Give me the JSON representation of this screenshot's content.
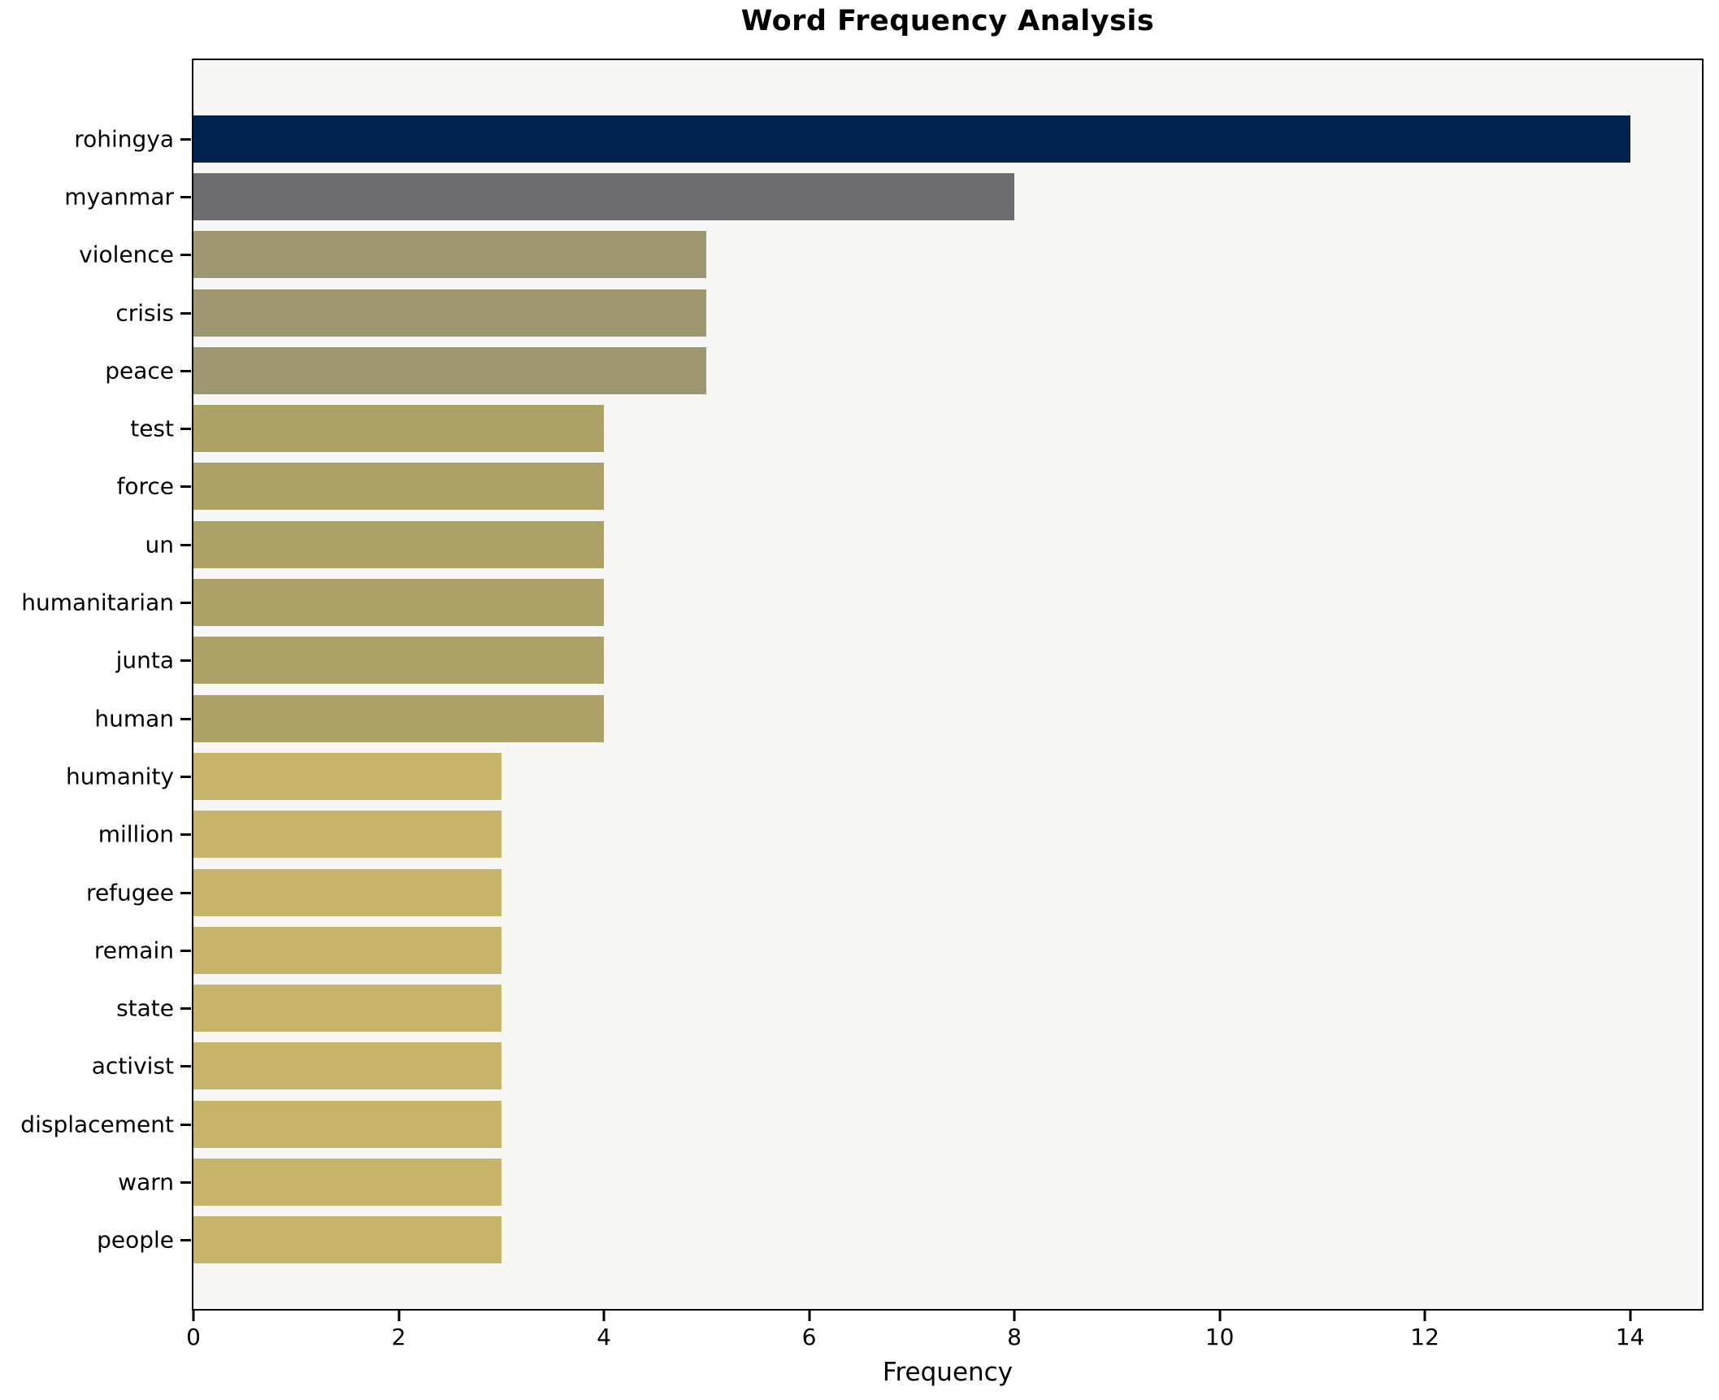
{
  "chart_data": {
    "type": "bar",
    "orientation": "horizontal",
    "title": "Word Frequency Analysis",
    "xlabel": "Frequency",
    "ylabel": "",
    "categories": [
      "rohingya",
      "myanmar",
      "violence",
      "crisis",
      "peace",
      "test",
      "force",
      "un",
      "humanitarian",
      "junta",
      "human",
      "humanity",
      "million",
      "refugee",
      "remain",
      "state",
      "activist",
      "displacement",
      "warn",
      "people"
    ],
    "values": [
      14,
      8,
      5,
      5,
      5,
      4,
      4,
      4,
      4,
      4,
      4,
      3,
      3,
      3,
      3,
      3,
      3,
      3,
      3,
      3
    ],
    "bar_colors": [
      "#00224e",
      "#6c6c71",
      "#9f9672",
      "#9f9672",
      "#9f9672",
      "#aca267",
      "#aca267",
      "#aca267",
      "#aca267",
      "#aca267",
      "#aca267",
      "#c5b469",
      "#c5b469",
      "#c5b469",
      "#c5b469",
      "#c5b469",
      "#c5b469",
      "#c5b469",
      "#c5b469",
      "#c5b469"
    ],
    "xlim": [
      0,
      14.7
    ],
    "xticks": [
      0,
      2,
      4,
      6,
      8,
      10,
      12,
      14
    ],
    "grid": false,
    "legend_position": "none",
    "plot_background": "#f7f7f6",
    "figure_background": "#ffffff",
    "spine_color": "#000000",
    "bar_height_fraction": 0.8
  }
}
